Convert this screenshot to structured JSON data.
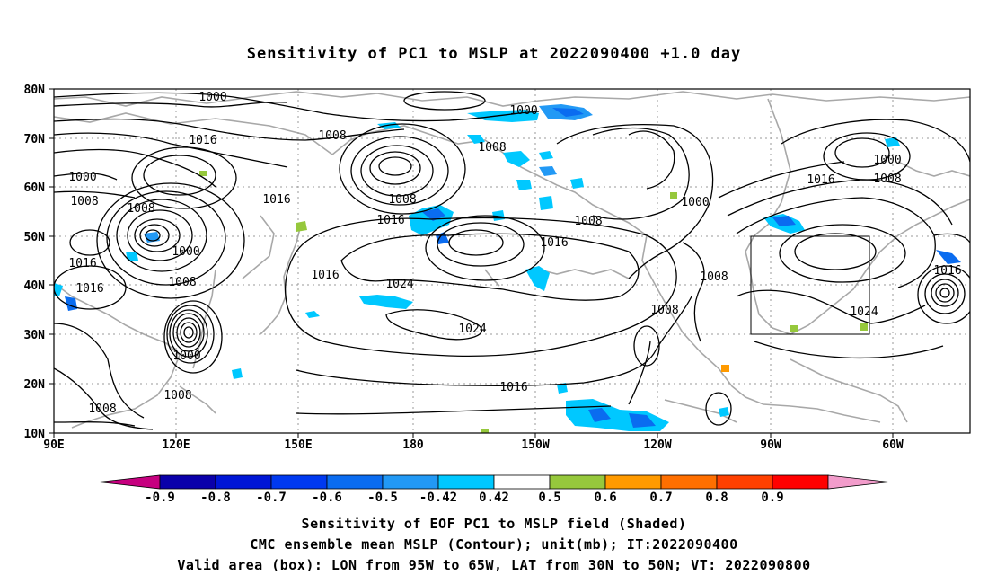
{
  "title": "Sensitivity of PC1 to MSLP at 2022090400 +1.0 day",
  "map": {
    "lat_labels": [
      "80N",
      "70N",
      "60N",
      "50N",
      "40N",
      "30N",
      "20N",
      "10N"
    ],
    "lon_labels": [
      "90E",
      "120E",
      "150E",
      "180",
      "150W",
      "120W",
      "90W",
      "60W"
    ],
    "contour_labels": [
      "1000",
      "1000",
      "1000",
      "1000",
      "1000",
      "1000",
      "1000",
      "1008",
      "1008",
      "1008",
      "1008",
      "1008",
      "1008",
      "1008",
      "1008",
      "1008",
      "1008",
      "1008",
      "1008",
      "1016",
      "1016",
      "1016",
      "1016",
      "1016",
      "1016",
      "1016",
      "1016",
      "1016",
      "1016",
      "1024",
      "1024",
      "1024"
    ],
    "valid_box": {
      "lon_from": "95W",
      "lon_to": "65W",
      "lat_from": "30N",
      "lat_to": "50N"
    }
  },
  "colorbar": {
    "labels": [
      "-0.9",
      "-0.8",
      "-0.7",
      "-0.6",
      "-0.5",
      "-0.42",
      "0.42",
      "0.5",
      "0.6",
      "0.7",
      "0.8",
      "0.9"
    ],
    "colors": [
      "#c6007f",
      "#0a00aa",
      "#0016d6",
      "#0039f0",
      "#0a6cf0",
      "#2299f5",
      "#00c8ff",
      "#ffffff",
      "#96c83c",
      "#ff9a00",
      "#ff6f00",
      "#ff4000",
      "#ff0000",
      "#f29ccb"
    ]
  },
  "captions": {
    "line1": "Sensitivity of EOF PC1 to MSLP field (Shaded)",
    "line2": "CMC ensemble mean MSLP (Contour); unit(mb); IT:2022090400",
    "line3": "Valid area (box): LON from 95W to 65W, LAT from 30N to 50N; VT: 2022090800"
  }
}
